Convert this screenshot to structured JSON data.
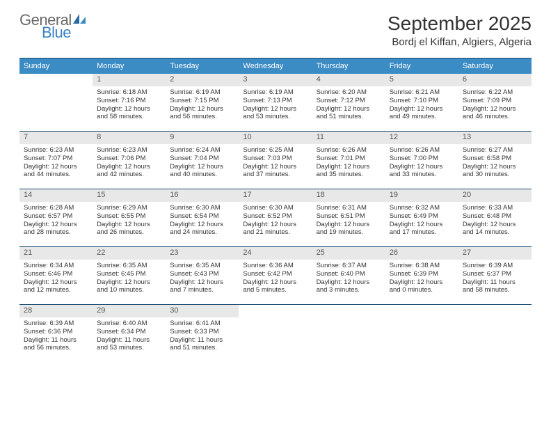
{
  "logo": {
    "general": "General",
    "blue": "Blue"
  },
  "title": "September 2025",
  "location": "Bordj el Kiffan, Algiers, Algeria",
  "colors": {
    "header_bg": "#3b8bc4",
    "border": "#1a4a6e",
    "daynum_bg": "#e8e8e8",
    "logo_gray": "#6a6a6a",
    "logo_blue": "#3b82c4"
  },
  "day_labels": [
    "Sunday",
    "Monday",
    "Tuesday",
    "Wednesday",
    "Thursday",
    "Friday",
    "Saturday"
  ],
  "weeks": [
    [
      {
        "num": "",
        "sunrise": "",
        "sunset": "",
        "daylight": ""
      },
      {
        "num": "1",
        "sunrise": "Sunrise: 6:18 AM",
        "sunset": "Sunset: 7:16 PM",
        "daylight": "Daylight: 12 hours and 58 minutes."
      },
      {
        "num": "2",
        "sunrise": "Sunrise: 6:19 AM",
        "sunset": "Sunset: 7:15 PM",
        "daylight": "Daylight: 12 hours and 56 minutes."
      },
      {
        "num": "3",
        "sunrise": "Sunrise: 6:19 AM",
        "sunset": "Sunset: 7:13 PM",
        "daylight": "Daylight: 12 hours and 53 minutes."
      },
      {
        "num": "4",
        "sunrise": "Sunrise: 6:20 AM",
        "sunset": "Sunset: 7:12 PM",
        "daylight": "Daylight: 12 hours and 51 minutes."
      },
      {
        "num": "5",
        "sunrise": "Sunrise: 6:21 AM",
        "sunset": "Sunset: 7:10 PM",
        "daylight": "Daylight: 12 hours and 49 minutes."
      },
      {
        "num": "6",
        "sunrise": "Sunrise: 6:22 AM",
        "sunset": "Sunset: 7:09 PM",
        "daylight": "Daylight: 12 hours and 46 minutes."
      }
    ],
    [
      {
        "num": "7",
        "sunrise": "Sunrise: 6:23 AM",
        "sunset": "Sunset: 7:07 PM",
        "daylight": "Daylight: 12 hours and 44 minutes."
      },
      {
        "num": "8",
        "sunrise": "Sunrise: 6:23 AM",
        "sunset": "Sunset: 7:06 PM",
        "daylight": "Daylight: 12 hours and 42 minutes."
      },
      {
        "num": "9",
        "sunrise": "Sunrise: 6:24 AM",
        "sunset": "Sunset: 7:04 PM",
        "daylight": "Daylight: 12 hours and 40 minutes."
      },
      {
        "num": "10",
        "sunrise": "Sunrise: 6:25 AM",
        "sunset": "Sunset: 7:03 PM",
        "daylight": "Daylight: 12 hours and 37 minutes."
      },
      {
        "num": "11",
        "sunrise": "Sunrise: 6:26 AM",
        "sunset": "Sunset: 7:01 PM",
        "daylight": "Daylight: 12 hours and 35 minutes."
      },
      {
        "num": "12",
        "sunrise": "Sunrise: 6:26 AM",
        "sunset": "Sunset: 7:00 PM",
        "daylight": "Daylight: 12 hours and 33 minutes."
      },
      {
        "num": "13",
        "sunrise": "Sunrise: 6:27 AM",
        "sunset": "Sunset: 6:58 PM",
        "daylight": "Daylight: 12 hours and 30 minutes."
      }
    ],
    [
      {
        "num": "14",
        "sunrise": "Sunrise: 6:28 AM",
        "sunset": "Sunset: 6:57 PM",
        "daylight": "Daylight: 12 hours and 28 minutes."
      },
      {
        "num": "15",
        "sunrise": "Sunrise: 6:29 AM",
        "sunset": "Sunset: 6:55 PM",
        "daylight": "Daylight: 12 hours and 26 minutes."
      },
      {
        "num": "16",
        "sunrise": "Sunrise: 6:30 AM",
        "sunset": "Sunset: 6:54 PM",
        "daylight": "Daylight: 12 hours and 24 minutes."
      },
      {
        "num": "17",
        "sunrise": "Sunrise: 6:30 AM",
        "sunset": "Sunset: 6:52 PM",
        "daylight": "Daylight: 12 hours and 21 minutes."
      },
      {
        "num": "18",
        "sunrise": "Sunrise: 6:31 AM",
        "sunset": "Sunset: 6:51 PM",
        "daylight": "Daylight: 12 hours and 19 minutes."
      },
      {
        "num": "19",
        "sunrise": "Sunrise: 6:32 AM",
        "sunset": "Sunset: 6:49 PM",
        "daylight": "Daylight: 12 hours and 17 minutes."
      },
      {
        "num": "20",
        "sunrise": "Sunrise: 6:33 AM",
        "sunset": "Sunset: 6:48 PM",
        "daylight": "Daylight: 12 hours and 14 minutes."
      }
    ],
    [
      {
        "num": "21",
        "sunrise": "Sunrise: 6:34 AM",
        "sunset": "Sunset: 6:46 PM",
        "daylight": "Daylight: 12 hours and 12 minutes."
      },
      {
        "num": "22",
        "sunrise": "Sunrise: 6:35 AM",
        "sunset": "Sunset: 6:45 PM",
        "daylight": "Daylight: 12 hours and 10 minutes."
      },
      {
        "num": "23",
        "sunrise": "Sunrise: 6:35 AM",
        "sunset": "Sunset: 6:43 PM",
        "daylight": "Daylight: 12 hours and 7 minutes."
      },
      {
        "num": "24",
        "sunrise": "Sunrise: 6:36 AM",
        "sunset": "Sunset: 6:42 PM",
        "daylight": "Daylight: 12 hours and 5 minutes."
      },
      {
        "num": "25",
        "sunrise": "Sunrise: 6:37 AM",
        "sunset": "Sunset: 6:40 PM",
        "daylight": "Daylight: 12 hours and 3 minutes."
      },
      {
        "num": "26",
        "sunrise": "Sunrise: 6:38 AM",
        "sunset": "Sunset: 6:39 PM",
        "daylight": "Daylight: 12 hours and 0 minutes."
      },
      {
        "num": "27",
        "sunrise": "Sunrise: 6:39 AM",
        "sunset": "Sunset: 6:37 PM",
        "daylight": "Daylight: 11 hours and 58 minutes."
      }
    ],
    [
      {
        "num": "28",
        "sunrise": "Sunrise: 6:39 AM",
        "sunset": "Sunset: 6:36 PM",
        "daylight": "Daylight: 11 hours and 56 minutes."
      },
      {
        "num": "29",
        "sunrise": "Sunrise: 6:40 AM",
        "sunset": "Sunset: 6:34 PM",
        "daylight": "Daylight: 11 hours and 53 minutes."
      },
      {
        "num": "30",
        "sunrise": "Sunrise: 6:41 AM",
        "sunset": "Sunset: 6:33 PM",
        "daylight": "Daylight: 11 hours and 51 minutes."
      },
      {
        "num": "",
        "sunrise": "",
        "sunset": "",
        "daylight": ""
      },
      {
        "num": "",
        "sunrise": "",
        "sunset": "",
        "daylight": ""
      },
      {
        "num": "",
        "sunrise": "",
        "sunset": "",
        "daylight": ""
      },
      {
        "num": "",
        "sunrise": "",
        "sunset": "",
        "daylight": ""
      }
    ]
  ]
}
